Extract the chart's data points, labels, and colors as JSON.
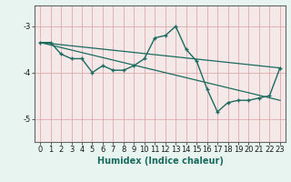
{
  "xlabel": "Humidex (Indice chaleur)",
  "background_color": "#e8f4f0",
  "plot_bg_color": "#f5e8e8",
  "grid_color": "#ddaaaa",
  "line_color": "#1a6b5e",
  "spine_color": "#666666",
  "tick_color": "#1a1a1a",
  "xlim": [
    -0.5,
    23.5
  ],
  "ylim": [
    -5.5,
    -2.55
  ],
  "yticks": [
    -5,
    -4,
    -3
  ],
  "xticks": [
    0,
    1,
    2,
    3,
    4,
    5,
    6,
    7,
    8,
    9,
    10,
    11,
    12,
    13,
    14,
    15,
    16,
    17,
    18,
    19,
    20,
    21,
    22,
    23
  ],
  "series1_x": [
    0,
    1,
    2,
    3,
    4,
    5,
    6,
    7,
    8,
    9,
    10,
    11,
    12,
    13,
    14,
    15,
    16,
    17,
    18,
    19,
    20,
    21,
    22,
    23
  ],
  "series1_y": [
    -3.35,
    -3.35,
    -3.6,
    -3.7,
    -3.7,
    -4.0,
    -3.85,
    -3.95,
    -3.95,
    -3.85,
    -3.7,
    -3.25,
    -3.2,
    -3.0,
    -3.5,
    -3.75,
    -4.35,
    -4.85,
    -4.65,
    -4.6,
    -4.6,
    -4.55,
    -4.5,
    -3.9
  ],
  "series2_x": [
    0,
    23
  ],
  "series2_y": [
    -3.35,
    -3.9
  ],
  "series3_x": [
    0,
    23
  ],
  "series3_y": [
    -3.35,
    -4.6
  ]
}
